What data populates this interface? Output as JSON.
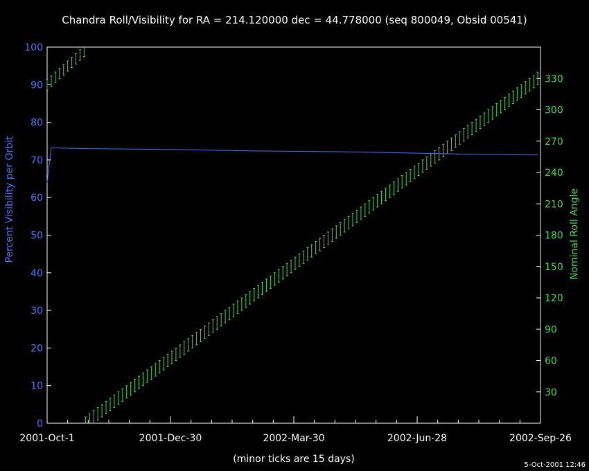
{
  "chart_data": {
    "type": "line",
    "title": "Chandra Roll/Visibility for RA = 214.120000 dec = 44.778000 (seq 800049, Obsid 00541)",
    "xlabel": "(minor ticks are 15 days)",
    "ylabel_left": "Percent Visibility per Orbit",
    "ylabel_right": "Nominal Roll Angle",
    "timestamp": "5-Oct-2001 12:46",
    "x_ticks": [
      "2001-Oct-1",
      "2001-Dec-30",
      "2002-Mar-30",
      "2002-Jun-28",
      "2002-Sep-26"
    ],
    "y_left_ticks": [
      0,
      10,
      20,
      30,
      40,
      50,
      60,
      70,
      80,
      90,
      100
    ],
    "y_right_ticks": [
      30,
      60,
      90,
      120,
      150,
      180,
      210,
      240,
      270,
      300,
      330
    ],
    "y_left_range": [
      0,
      100
    ],
    "y_right_range": [
      0,
      360
    ],
    "x_range_days": [
      0,
      360
    ],
    "colors": {
      "visibility": "#3d7bff",
      "roll": "#33dd55",
      "axes": "#ffffff"
    },
    "visibility_series": {
      "name": "Percent Visibility per Orbit",
      "x_days": [
        0,
        3,
        30,
        60,
        90,
        120,
        150,
        180,
        210,
        240,
        270,
        300,
        330,
        358
      ],
      "values": [
        64,
        73.2,
        73.0,
        72.9,
        72.8,
        72.6,
        72.4,
        72.3,
        72.2,
        72.0,
        71.8,
        71.6,
        71.4,
        71.3
      ]
    },
    "roll_series": {
      "name": "Nominal Roll Angle",
      "segment1": {
        "x_start": 0,
        "x_end": 27,
        "step": 3,
        "y_start": 324,
        "y_end": 356,
        "half_width": 5
      },
      "segment2": {
        "x_start": 28,
        "x_end": 358,
        "step": 3,
        "y_start": 0,
        "y_end": 330,
        "half_width": 6
      }
    }
  }
}
